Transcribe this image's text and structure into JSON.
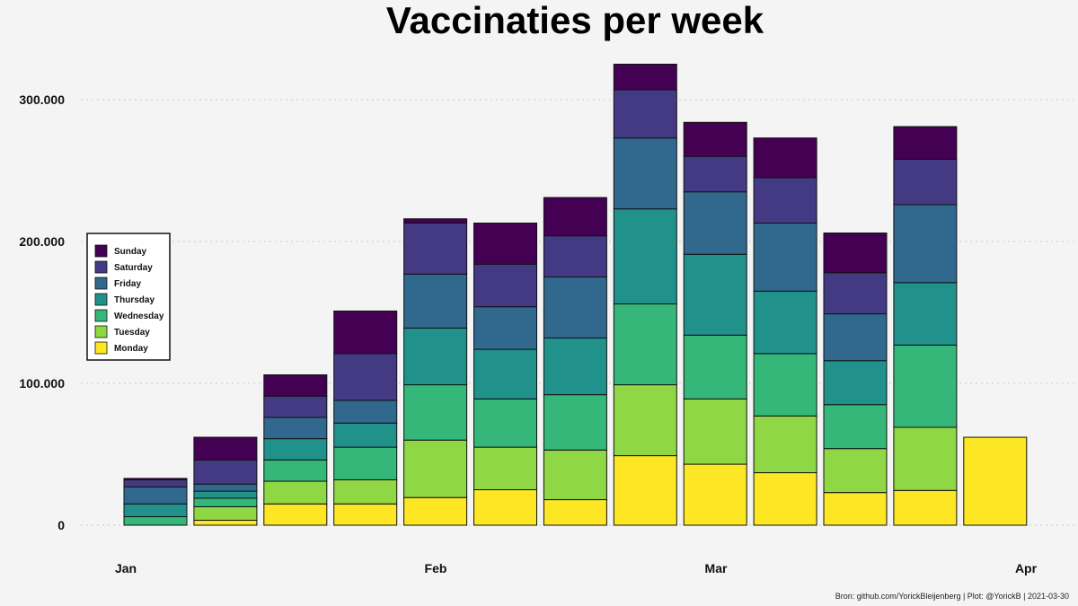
{
  "chart_data": {
    "type": "bar",
    "stacked": true,
    "title": "Vaccinaties per week",
    "caption": "Bron: github.com/YorickBleijenberg | Plot: @YorickB  |  2021-03-30",
    "xlabel": "",
    "ylabel": "",
    "x_tick_labels": [
      "Jan",
      "Feb",
      "Mar",
      "Apr"
    ],
    "y_ticks": [
      0,
      100000,
      200000,
      300000
    ],
    "y_tick_labels": [
      "0",
      "100.000",
      "200.000",
      "300.000"
    ],
    "ylim": [
      0,
      330000
    ],
    "grid": "horizontal dotted",
    "legend_position": "left",
    "series": [
      {
        "name": "Monday",
        "color": "#fde725",
        "values": [
          0,
          3500,
          15000,
          15000,
          19500,
          25000,
          18000,
          49000,
          43000,
          37000,
          23000,
          24500,
          62000
        ]
      },
      {
        "name": "Tuesday",
        "color": "#8fd744",
        "values": [
          0,
          9500,
          16000,
          17000,
          40500,
          30000,
          35000,
          50000,
          46000,
          40000,
          31000,
          44500,
          0
        ]
      },
      {
        "name": "Wednesday",
        "color": "#35b779",
        "values": [
          6000,
          6000,
          15000,
          23000,
          39000,
          34000,
          39000,
          57000,
          45000,
          44000,
          31000,
          58000,
          0
        ]
      },
      {
        "name": "Thursday",
        "color": "#21918c",
        "values": [
          9000,
          5000,
          15000,
          17000,
          40000,
          35000,
          40000,
          67000,
          57000,
          44000,
          31000,
          44000,
          0
        ]
      },
      {
        "name": "Friday",
        "color": "#31688e",
        "values": [
          12000,
          5000,
          15000,
          16000,
          38000,
          30000,
          43000,
          50000,
          44000,
          48000,
          33000,
          55000,
          0
        ]
      },
      {
        "name": "Saturday",
        "color": "#443983",
        "values": [
          5000,
          17000,
          15000,
          33000,
          36000,
          30000,
          29000,
          34000,
          25000,
          32000,
          29000,
          32000,
          0
        ]
      },
      {
        "name": "Sunday",
        "color": "#440154",
        "values": [
          1000,
          16000,
          15000,
          30000,
          3000,
          29000,
          27000,
          18000,
          24000,
          28000,
          28000,
          23000,
          0
        ]
      }
    ]
  }
}
